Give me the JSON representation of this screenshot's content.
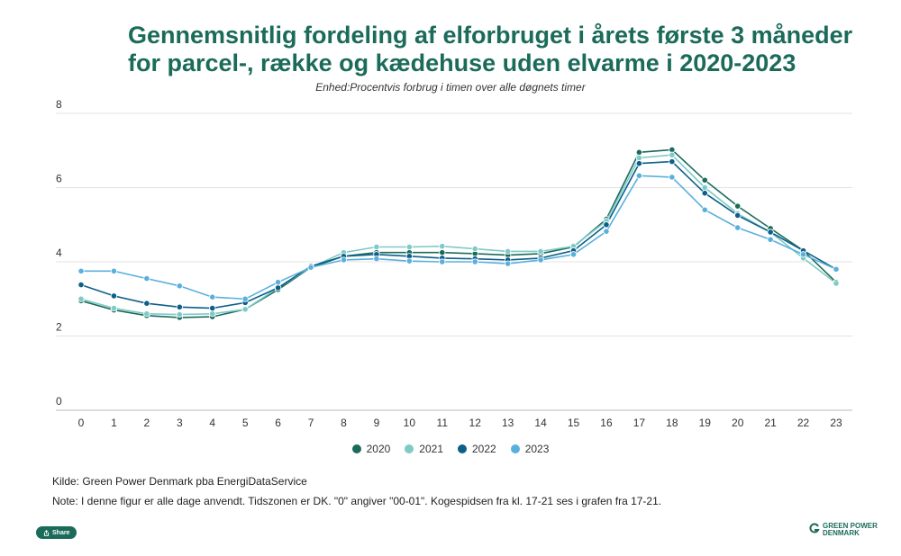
{
  "title_line1": "Gennemsnitlig fordeling af elforbruget i årets første 3 måneder",
  "title_line2": "for parcel-, række og kædehuse uden elvarme i 2020-2023",
  "subtitle": "Enhed:Procentvis forbrug i timen over alle døgnets timer",
  "source": "Kilde: Green Power Denmark pba EnergiDataService",
  "note": "Note: I denne figur er alle dage anvendt. Tidszonen er DK. \"0\" angiver \"00-01\". Kogespidsen fra kl. 17-21 ses i grafen fra 17-21.",
  "share_label": "Share",
  "logo_line1": "GREEN POWER",
  "logo_line2": "DENMARK",
  "chart_data": {
    "type": "line",
    "x": [
      0,
      1,
      2,
      3,
      4,
      5,
      6,
      7,
      8,
      9,
      10,
      11,
      12,
      13,
      14,
      15,
      16,
      17,
      18,
      19,
      20,
      21,
      22,
      23
    ],
    "ylim": [
      0,
      8
    ],
    "yticks": [
      0,
      2,
      4,
      6,
      8
    ],
    "grid": true,
    "legend_position": "bottom",
    "series": [
      {
        "name": "2020",
        "color": "#1b6b5a",
        "values": [
          2.95,
          2.7,
          2.55,
          2.5,
          2.52,
          2.72,
          3.25,
          3.85,
          4.15,
          4.25,
          4.25,
          4.25,
          4.22,
          4.18,
          4.22,
          4.4,
          5.15,
          6.95,
          7.02,
          6.2,
          5.5,
          4.9,
          4.3,
          3.45
        ]
      },
      {
        "name": "2021",
        "color": "#7ecac6",
        "values": [
          3.0,
          2.75,
          2.6,
          2.58,
          2.6,
          2.72,
          3.3,
          3.85,
          4.25,
          4.4,
          4.4,
          4.42,
          4.35,
          4.28,
          4.28,
          4.42,
          5.1,
          6.8,
          6.88,
          6.0,
          5.3,
          4.8,
          4.1,
          3.42
        ]
      },
      {
        "name": "2022",
        "color": "#0d5f8a",
        "values": [
          3.38,
          3.08,
          2.88,
          2.78,
          2.75,
          2.9,
          3.3,
          3.88,
          4.15,
          4.2,
          4.15,
          4.1,
          4.08,
          4.05,
          4.1,
          4.3,
          5.0,
          6.65,
          6.7,
          5.85,
          5.25,
          4.8,
          4.3,
          3.8
        ]
      },
      {
        "name": "2023",
        "color": "#5ab0dc",
        "values": [
          3.75,
          3.75,
          3.55,
          3.35,
          3.05,
          3.0,
          3.45,
          3.85,
          4.05,
          4.08,
          4.02,
          4.0,
          4.0,
          3.95,
          4.05,
          4.2,
          4.82,
          6.32,
          6.28,
          5.4,
          4.92,
          4.6,
          4.2,
          3.8
        ]
      }
    ]
  }
}
